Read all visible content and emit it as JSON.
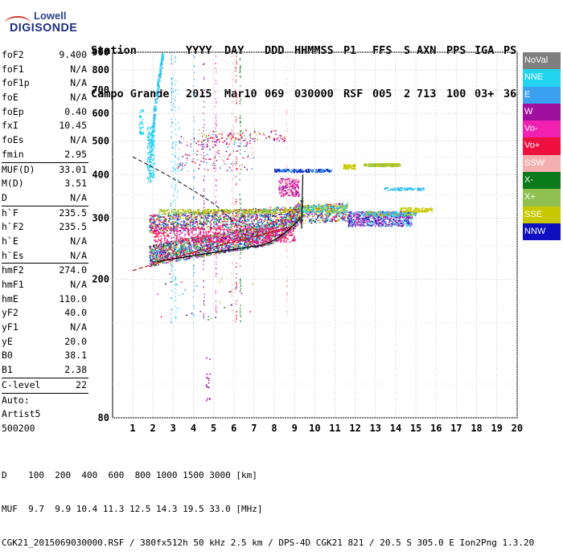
{
  "logo": {
    "line1": "Lowell",
    "line2": "DIGISONDE"
  },
  "header": {
    "row1": [
      "Station",
      "YYYY",
      "DAY",
      "DDD",
      "HHMMSS",
      "P1",
      "FFS",
      "S",
      "AXN",
      "PPS",
      "IGA",
      "PS"
    ],
    "row2": [
      "Campo Grande",
      "2015",
      "Mar10",
      "069",
      "030000",
      "RSF",
      "005",
      "2",
      "713",
      "100",
      "03+",
      "36"
    ]
  },
  "params": {
    "g1": [
      [
        "foF2",
        "9.400"
      ],
      [
        "foF1",
        "N/A"
      ],
      [
        "foF1p",
        "N/A"
      ],
      [
        "foE",
        "N/A"
      ],
      [
        "foEp",
        "0.40"
      ],
      [
        "fxI",
        "10.45"
      ],
      [
        "foEs",
        "N/A"
      ],
      [
        "fmin",
        "2.95"
      ]
    ],
    "g2": [
      [
        "MUF(D)",
        "33.01"
      ],
      [
        "M(D)",
        "3.51"
      ],
      [
        "D",
        "N/A"
      ]
    ],
    "g3": [
      [
        "h`F",
        "235.5"
      ],
      [
        "h`F2",
        "235.5"
      ],
      [
        "h`E",
        "N/A"
      ],
      [
        "h`Es",
        "N/A"
      ]
    ],
    "g4": [
      [
        "hmF2",
        "274.0"
      ],
      [
        "hmF1",
        "N/A"
      ],
      [
        "hmE",
        "110.0"
      ],
      [
        "yF2",
        "40.0"
      ],
      [
        "yF1",
        "N/A"
      ],
      [
        "yE",
        "20.0"
      ],
      [
        "B0",
        "38.1"
      ],
      [
        "B1",
        "2.38"
      ]
    ],
    "g5": [
      [
        "C-level",
        "22"
      ]
    ],
    "auto": [
      "Auto:",
      "Artist5",
      "500200"
    ]
  },
  "legend": [
    {
      "label": "NoVal",
      "color": "#7f7f7f"
    },
    {
      "label": "NNE",
      "color": "#22d4f0"
    },
    {
      "label": "E",
      "color": "#3aa0f0"
    },
    {
      "label": "W",
      "color": "#a0109f"
    },
    {
      "label": "Vo-",
      "color": "#f020b0"
    },
    {
      "label": "Vo+",
      "color": "#f01040"
    },
    {
      "label": "SSW",
      "color": "#f4b0b0"
    },
    {
      "label": "X-",
      "color": "#0a7a1a"
    },
    {
      "label": "X+",
      "color": "#90c050"
    },
    {
      "label": "SSE",
      "color": "#c8c800"
    },
    {
      "label": "NNW",
      "color": "#1010c0"
    }
  ],
  "chart_data": {
    "type": "scatter",
    "x_ticks": [
      "1",
      "2",
      "3",
      "4",
      "5",
      "6",
      "7",
      "8",
      "9",
      "10",
      "11",
      "12",
      "13",
      "14",
      "15",
      "16",
      "17",
      "18",
      "19",
      "20"
    ],
    "y_ticks": [
      "80",
      "200",
      "300",
      "400",
      "500",
      "600",
      "700",
      "800",
      "900"
    ],
    "xlim": [
      1,
      20
    ],
    "ylim": [
      80,
      900
    ],
    "y_scale": "log",
    "grid": true
  },
  "footer": {
    "line1": "D    100  200  400  600  800 1000 1500 3000 [km]",
    "line2": "MUF  9.7  9.9 10.4 11.3 12.5 14.3 19.5 33.0 [MHz]",
    "line3": "CGK21_2015069030000.RSF / 380fx512h 50 kHz 2.5 km / DPS-4D CGK21 821 / 20.5 S 305.0 E Ion2Png 1.3.20"
  }
}
